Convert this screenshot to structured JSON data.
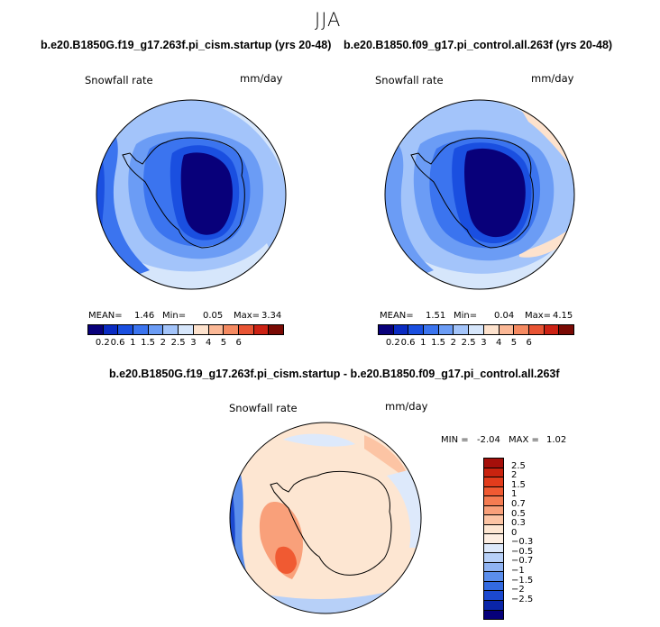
{
  "header": {
    "season": "JJA"
  },
  "chart_data": [
    {
      "type": "heatmap",
      "projection": "south-polar-stereographic",
      "title": "b.e20.B1850G.f19_g17.263f.pi_cism.startup (yrs 20-48)",
      "variable": "Snowfall rate",
      "units": "mm/day",
      "stats": {
        "mean_label": "MEAN=",
        "mean": "1.46",
        "min_label": "Min=",
        "min": "0.05",
        "max_label": "Max=",
        "max": "3.34"
      },
      "levels": [
        "0.2",
        "0.6",
        "1",
        "1.5",
        "2",
        "2.5",
        "3",
        "4",
        "5",
        "6"
      ],
      "colors": [
        "#08007a",
        "#0a2bc2",
        "#1a4fe0",
        "#3b74ef",
        "#6b9cf5",
        "#a3c4fa",
        "#d6e6fb",
        "#fde2cd",
        "#fbb896",
        "#f58a61",
        "#e85434",
        "#cc2214",
        "#7a0a04"
      ]
    },
    {
      "type": "heatmap",
      "projection": "south-polar-stereographic",
      "title": "b.e20.B1850.f09_g17.pi_control.all.263f (yrs 20-48)",
      "variable": "Snowfall rate",
      "units": "mm/day",
      "stats": {
        "mean_label": "MEAN=",
        "mean": "1.51",
        "min_label": "Min=",
        "min": "0.04",
        "max_label": "Max=",
        "max": "4.15"
      },
      "levels": [
        "0.2",
        "0.6",
        "1",
        "1.5",
        "2",
        "2.5",
        "3",
        "4",
        "5",
        "6"
      ],
      "colors": [
        "#08007a",
        "#0a2bc2",
        "#1a4fe0",
        "#3b74ef",
        "#6b9cf5",
        "#a3c4fa",
        "#d6e6fb",
        "#fde2cd",
        "#fbb896",
        "#f58a61",
        "#e85434",
        "#cc2214",
        "#7a0a04"
      ]
    },
    {
      "type": "heatmap",
      "projection": "south-polar-stereographic",
      "title": "b.e20.B1850G.f19_g17.263f.pi_cism.startup - b.e20.B1850.f09_g17.pi_control.all.263f",
      "variable": "Snowfall rate",
      "units": "mm/day",
      "stats": {
        "min_label": "MIN =",
        "min": "-2.04",
        "max_label": "MAX =",
        "max": "1.02"
      },
      "levels": [
        "2.5",
        "2",
        "1.5",
        "1",
        "0.7",
        "0.5",
        "0.3",
        "0",
        "−0.3",
        "−0.5",
        "−0.7",
        "−1",
        "−1.5",
        "−2",
        "−2.5"
      ],
      "colors": [
        "#a50f0a",
        "#c9230f",
        "#e23c1c",
        "#f05a32",
        "#f57c52",
        "#f9a07a",
        "#fcc4a4",
        "#fde6d2",
        "#fdeee2",
        "#dde9fb",
        "#b7d0f8",
        "#8fb3f2",
        "#5b8eec",
        "#336ae0",
        "#1b48cf",
        "#0a25a8",
        "#06007a"
      ]
    }
  ]
}
